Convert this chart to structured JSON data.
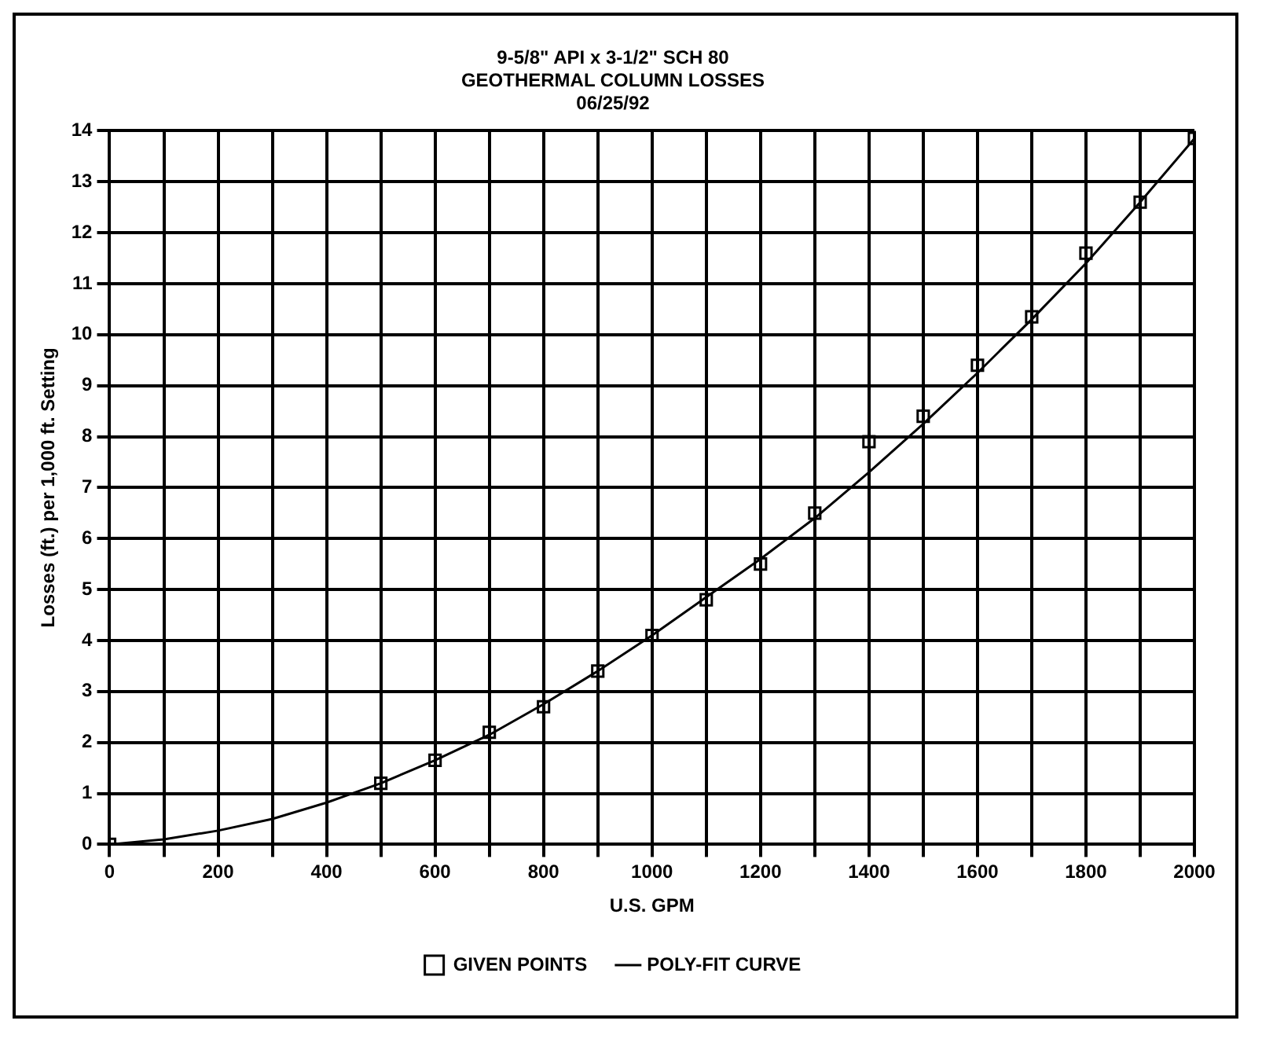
{
  "chart_data": {
    "type": "scatter",
    "title": "9-5/8\" API x 3-1/2\" SCH 80\nGEOTHERMAL COLUMN LOSSES\n06/25/92",
    "xlabel": "U.S. GPM",
    "ylabel": "Losses (ft.) per 1,000 ft. Setting",
    "series": [
      {
        "name": "GIVEN POINTS",
        "type": "scatter",
        "marker": "square",
        "color": "#000000",
        "x": [
          0,
          500,
          600,
          700,
          800,
          900,
          1000,
          1100,
          1200,
          1300,
          1400,
          1500,
          1600,
          1700,
          1800,
          1900,
          2000
        ],
        "values": [
          0,
          1.2,
          1.65,
          2.2,
          2.7,
          3.4,
          4.1,
          4.8,
          5.5,
          6.5,
          7.9,
          8.4,
          9.4,
          10.35,
          11.6,
          12.6,
          13.85
        ]
      },
      {
        "name": "POLY-FIT CURVE",
        "type": "line",
        "marker": "none",
        "line_style": "solid",
        "color": "#000000",
        "x": [
          0,
          100,
          200,
          300,
          400,
          500,
          600,
          700,
          800,
          900,
          1000,
          1100,
          1200,
          1300,
          1400,
          1500,
          1600,
          1700,
          1800,
          1900,
          2000
        ],
        "values": [
          0,
          0.1,
          0.27,
          0.5,
          0.82,
          1.2,
          1.65,
          2.15,
          2.75,
          3.4,
          4.1,
          4.85,
          5.6,
          6.4,
          7.3,
          8.25,
          9.25,
          10.3,
          11.4,
          12.6,
          13.85
        ]
      }
    ],
    "xlim": [
      0,
      2000
    ],
    "xticks": [
      0,
      {
        "value": 100,
        "label": null
      },
      200,
      {
        "value": 300,
        "label": null
      },
      400,
      {
        "value": 500,
        "label": null
      },
      600,
      {
        "value": 700,
        "label": null
      },
      800,
      {
        "value": 900,
        "label": null
      },
      1000,
      {
        "value": 1100,
        "label": null
      },
      1200,
      {
        "value": 1300,
        "label": null
      },
      1400,
      {
        "value": 1500,
        "label": null
      },
      1600,
      {
        "value": 1700,
        "label": null
      },
      1800,
      {
        "value": 1900,
        "label": null
      },
      2000
    ],
    "ylim": [
      0,
      14
    ],
    "yticks": [
      0,
      1,
      2,
      3,
      4,
      5,
      6,
      7,
      8,
      9,
      10,
      11,
      12,
      13,
      14
    ],
    "grid": true,
    "legend": "bottom"
  }
}
